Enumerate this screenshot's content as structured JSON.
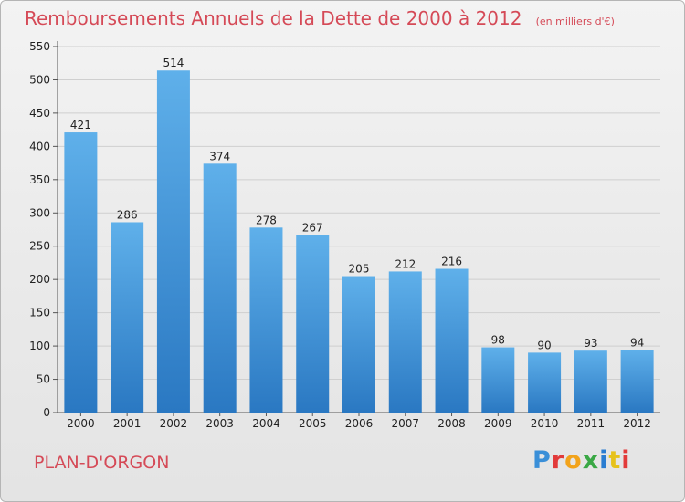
{
  "header": {
    "title": "Remboursements Annuels de la Dette de 2000 à 2012",
    "unit": "(en milliers d'€)"
  },
  "footer": {
    "commune": "PLAN-D'ORGON",
    "logo_letters": [
      "P",
      "r",
      "o",
      "x",
      "i",
      "t",
      "i"
    ],
    "logo_colors": [
      "#3a8fd8",
      "#e23a3a",
      "#f2a31b",
      "#3aa845",
      "#2a7dd1",
      "#e6c21c",
      "#e23a3a"
    ]
  },
  "colors": {
    "bar_top": "#5fb0ea",
    "bar_bottom": "#2a78c2",
    "grid": "#cfcfcf",
    "axis": "#555555",
    "title": "#d54a57"
  },
  "chart_data": {
    "type": "bar",
    "title": "Remboursements Annuels de la Dette de 2000 à 2012",
    "subtitle": "(en milliers d'€)",
    "xlabel": "",
    "ylabel": "",
    "categories": [
      "2000",
      "2001",
      "2002",
      "2003",
      "2004",
      "2005",
      "2006",
      "2007",
      "2008",
      "2009",
      "2010",
      "2011",
      "2012"
    ],
    "values": [
      421,
      286,
      514,
      374,
      278,
      267,
      205,
      212,
      216,
      98,
      90,
      93,
      94
    ],
    "ylim": [
      0,
      550
    ],
    "yticks": [
      0,
      50,
      100,
      150,
      200,
      250,
      300,
      350,
      400,
      450,
      500,
      550
    ],
    "grid": true,
    "legend": "none"
  }
}
